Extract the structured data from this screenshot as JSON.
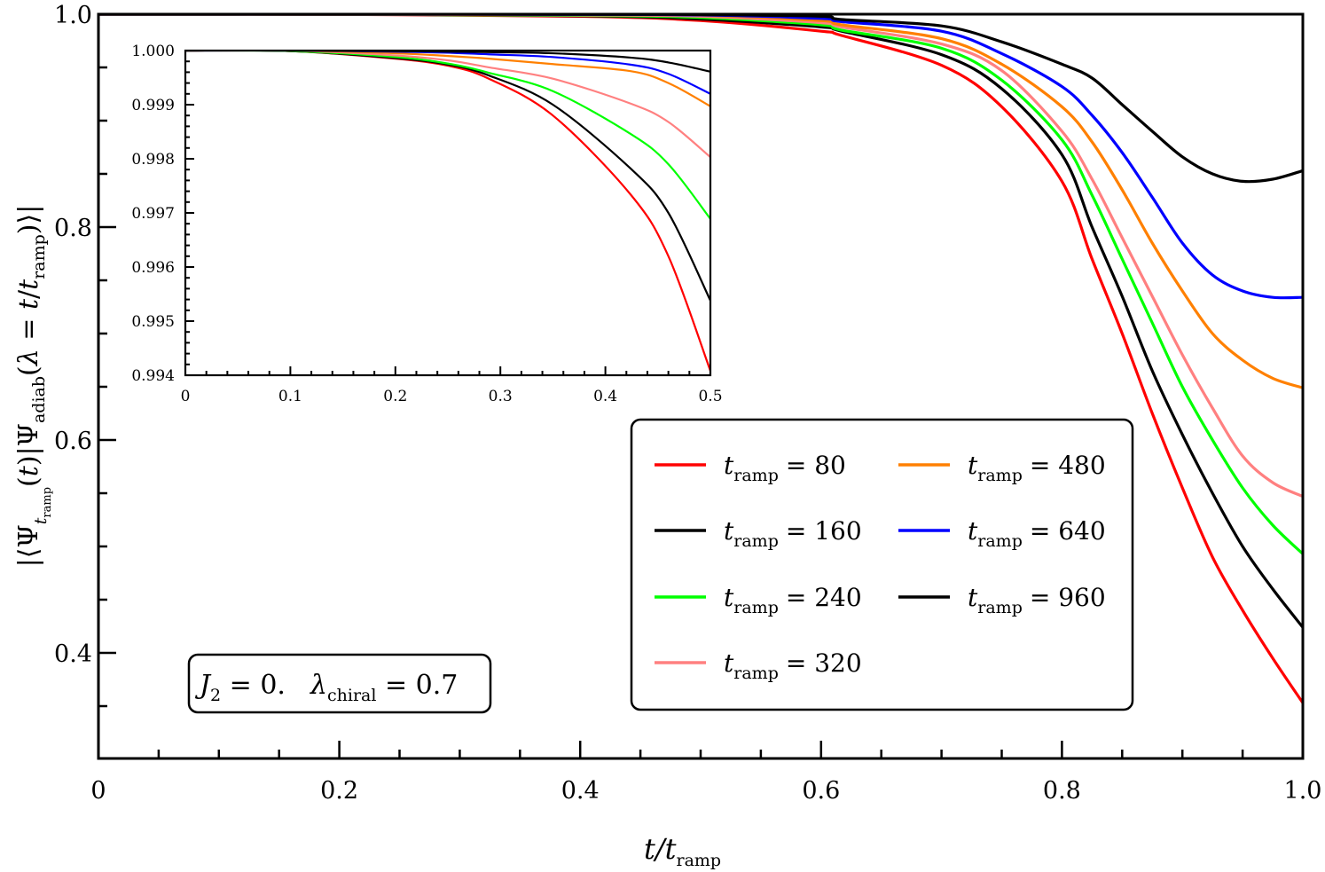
{
  "chart_data": {
    "type": "line",
    "title": "",
    "xlabel": "t/t_ramp",
    "ylabel": "|⟨Ψ_{t_ramp}(t)|Ψ_adiab(λ = t/t_ramp)⟩|",
    "xlim": [
      0,
      1.0
    ],
    "ylim": [
      0.3,
      1.0
    ],
    "grid": false,
    "legend_position": "lower center-right",
    "x_ticks": [
      "0",
      "0.2",
      "0.4",
      "0.6",
      "0.8",
      "1.0"
    ],
    "y_ticks": [
      "0.4",
      "0.6",
      "0.8",
      "1.0"
    ],
    "annotation": "J_2 = 0.   λ_chiral = 0.7",
    "series": [
      {
        "name": "t_ramp = 80",
        "color": "#ff0000",
        "t": [
          0,
          0.2,
          0.4,
          0.5,
          0.6,
          0.617,
          0.7,
          0.75,
          0.8,
          0.825,
          0.85,
          0.875,
          0.9,
          0.925,
          0.95,
          0.975,
          1.0
        ],
        "values": [
          1.0,
          0.9998,
          0.998,
          0.994,
          0.984,
          0.98,
          0.952,
          0.913,
          0.843,
          0.77,
          0.7,
          0.625,
          0.555,
          0.49,
          0.44,
          0.395,
          0.353
        ]
      },
      {
        "name": "t_ramp = 160",
        "color": "#000000",
        "t": [
          0,
          0.2,
          0.4,
          0.5,
          0.6,
          0.617,
          0.7,
          0.75,
          0.8,
          0.825,
          0.85,
          0.875,
          0.9,
          0.925,
          0.95,
          0.975,
          1.0
        ],
        "values": [
          1.0,
          0.9999,
          0.9985,
          0.9954,
          0.988,
          0.984,
          0.962,
          0.93,
          0.868,
          0.8,
          0.735,
          0.665,
          0.605,
          0.55,
          0.5,
          0.46,
          0.424
        ]
      },
      {
        "name": "t_ramp = 240",
        "color": "#00ff00",
        "t": [
          0,
          0.2,
          0.4,
          0.5,
          0.6,
          0.617,
          0.7,
          0.75,
          0.8,
          0.825,
          0.85,
          0.875,
          0.9,
          0.925,
          0.95,
          0.975,
          1.0
        ],
        "values": [
          1.0,
          0.9999,
          0.9988,
          0.9969,
          0.99,
          0.985,
          0.968,
          0.938,
          0.882,
          0.83,
          0.77,
          0.71,
          0.65,
          0.6,
          0.555,
          0.52,
          0.493
        ]
      },
      {
        "name": "t_ramp = 320",
        "color": "#ff8080",
        "t": [
          0,
          0.2,
          0.4,
          0.5,
          0.6,
          0.617,
          0.7,
          0.75,
          0.8,
          0.825,
          0.85,
          0.875,
          0.9,
          0.925,
          0.95,
          0.975,
          1.0
        ],
        "values": [
          1.0,
          0.9999,
          0.9993,
          0.998,
          0.992,
          0.988,
          0.972,
          0.947,
          0.89,
          0.845,
          0.79,
          0.735,
          0.68,
          0.63,
          0.585,
          0.56,
          0.547
        ]
      },
      {
        "name": "t_ramp = 480",
        "color": "#ff8000",
        "t": [
          0,
          0.2,
          0.4,
          0.5,
          0.6,
          0.617,
          0.7,
          0.75,
          0.8,
          0.825,
          0.85,
          0.875,
          0.9,
          0.925,
          0.95,
          0.975,
          1.0
        ],
        "values": [
          1.0,
          1.0,
          0.9997,
          0.999,
          0.994,
          0.99,
          0.977,
          0.953,
          0.913,
          0.88,
          0.835,
          0.785,
          0.74,
          0.7,
          0.675,
          0.658,
          0.649
        ]
      },
      {
        "name": "t_ramp = 640",
        "color": "#0000ff",
        "t": [
          0,
          0.2,
          0.4,
          0.5,
          0.6,
          0.617,
          0.7,
          0.75,
          0.8,
          0.825,
          0.85,
          0.875,
          0.9,
          0.925,
          0.95,
          0.975,
          1.0
        ],
        "values": [
          1.0,
          1.0,
          0.9998,
          0.9992,
          0.996,
          0.993,
          0.984,
          0.963,
          0.932,
          0.905,
          0.87,
          0.828,
          0.785,
          0.755,
          0.74,
          0.734,
          0.734
        ]
      },
      {
        "name": "t_ramp = 960",
        "color": "#000000",
        "t": [
          0,
          0.2,
          0.4,
          0.5,
          0.6,
          0.617,
          0.7,
          0.75,
          0.8,
          0.825,
          0.85,
          0.875,
          0.9,
          0.925,
          0.95,
          0.975,
          1.0
        ],
        "values": [
          1.0,
          1.0,
          0.9999,
          0.9996,
          0.998,
          0.995,
          0.989,
          0.974,
          0.953,
          0.94,
          0.915,
          0.89,
          0.866,
          0.85,
          0.843,
          0.845,
          0.853
        ]
      }
    ],
    "inset": {
      "xlim": [
        0,
        0.5
      ],
      "ylim": [
        0.994,
        1.0
      ],
      "x_ticks": [
        "0",
        "0.1",
        "0.2",
        "0.3",
        "0.4",
        "0.5"
      ],
      "y_ticks": [
        "0.994",
        "0.995",
        "0.996",
        "0.997",
        "0.998",
        "0.999",
        "1.000"
      ],
      "series": [
        {
          "name": "t_ramp = 80",
          "color": "#ff0000",
          "t": [
            0,
            0.1,
            0.2,
            0.25,
            0.289,
            0.35,
            0.424,
            0.46,
            0.5
          ],
          "values": [
            1.0,
            0.99999,
            0.99985,
            0.99972,
            0.99948,
            0.9988,
            0.99734,
            0.9962,
            0.99408
          ]
        },
        {
          "name": "t_ramp = 160",
          "color": "#000000",
          "t": [
            0,
            0.1,
            0.2,
            0.25,
            0.289,
            0.35,
            0.424,
            0.46,
            0.5
          ],
          "values": [
            1.0,
            0.99999,
            0.99986,
            0.99974,
            0.99954,
            0.999,
            0.99782,
            0.997,
            0.99538
          ]
        },
        {
          "name": "t_ramp = 240",
          "color": "#00ff00",
          "t": [
            0,
            0.1,
            0.2,
            0.25,
            0.289,
            0.35,
            0.424,
            0.46,
            0.5
          ],
          "values": [
            1.0,
            0.99999,
            0.99988,
            0.99976,
            0.99959,
            0.99925,
            0.99846,
            0.9979,
            0.99689
          ]
        },
        {
          "name": "t_ramp = 320",
          "color": "#ff8080",
          "t": [
            0,
            0.1,
            0.2,
            0.25,
            0.289,
            0.35,
            0.424,
            0.46,
            0.5
          ],
          "values": [
            1.0,
            1.0,
            0.99991,
            0.99982,
            0.99969,
            0.99948,
            0.99902,
            0.99868,
            0.99803
          ]
        },
        {
          "name": "t_ramp = 480",
          "color": "#ff8000",
          "t": [
            0,
            0.1,
            0.2,
            0.25,
            0.289,
            0.35,
            0.424,
            0.46,
            0.5
          ],
          "values": [
            1.0,
            1.0,
            0.99995,
            0.9999,
            0.99985,
            0.99975,
            0.99962,
            0.9994,
            0.99897
          ]
        },
        {
          "name": "t_ramp = 640",
          "color": "#0000ff",
          "t": [
            0,
            0.1,
            0.2,
            0.25,
            0.289,
            0.35,
            0.424,
            0.46,
            0.5
          ],
          "values": [
            1.0,
            1.0,
            0.99998,
            0.99996,
            0.99993,
            0.99988,
            0.99974,
            0.99957,
            0.9992
          ]
        },
        {
          "name": "t_ramp = 960",
          "color": "#000000",
          "t": [
            0,
            0.1,
            0.2,
            0.25,
            0.289,
            0.35,
            0.424,
            0.46,
            0.5
          ],
          "values": [
            1.0,
            1.0,
            0.99999,
            0.99998,
            0.99997,
            0.99995,
            0.99987,
            0.99978,
            0.99961
          ]
        }
      ]
    }
  },
  "labels": {
    "xlabel_main": "t/t",
    "xlabel_sub": "ramp",
    "annotation_j": "J",
    "annotation_j_sub": "2",
    "annotation_j_val": " = 0.",
    "annotation_lambda": "λ",
    "annotation_lambda_sub": "chiral",
    "annotation_lambda_val": " = 0.7"
  },
  "legend": [
    {
      "label_sub": "ramp",
      "value": "= 80",
      "color": "#ff0000"
    },
    {
      "label_sub": "ramp",
      "value": "= 160",
      "color": "#000000"
    },
    {
      "label_sub": "ramp",
      "value": "= 240",
      "color": "#00ff00"
    },
    {
      "label_sub": "ramp",
      "value": "= 320",
      "color": "#ff8080"
    },
    {
      "label_sub": "ramp",
      "value": "= 480",
      "color": "#ff8000"
    },
    {
      "label_sub": "ramp",
      "value": "= 640",
      "color": "#0000ff"
    },
    {
      "label_sub": "ramp",
      "value": "= 960",
      "color": "#000000"
    }
  ]
}
